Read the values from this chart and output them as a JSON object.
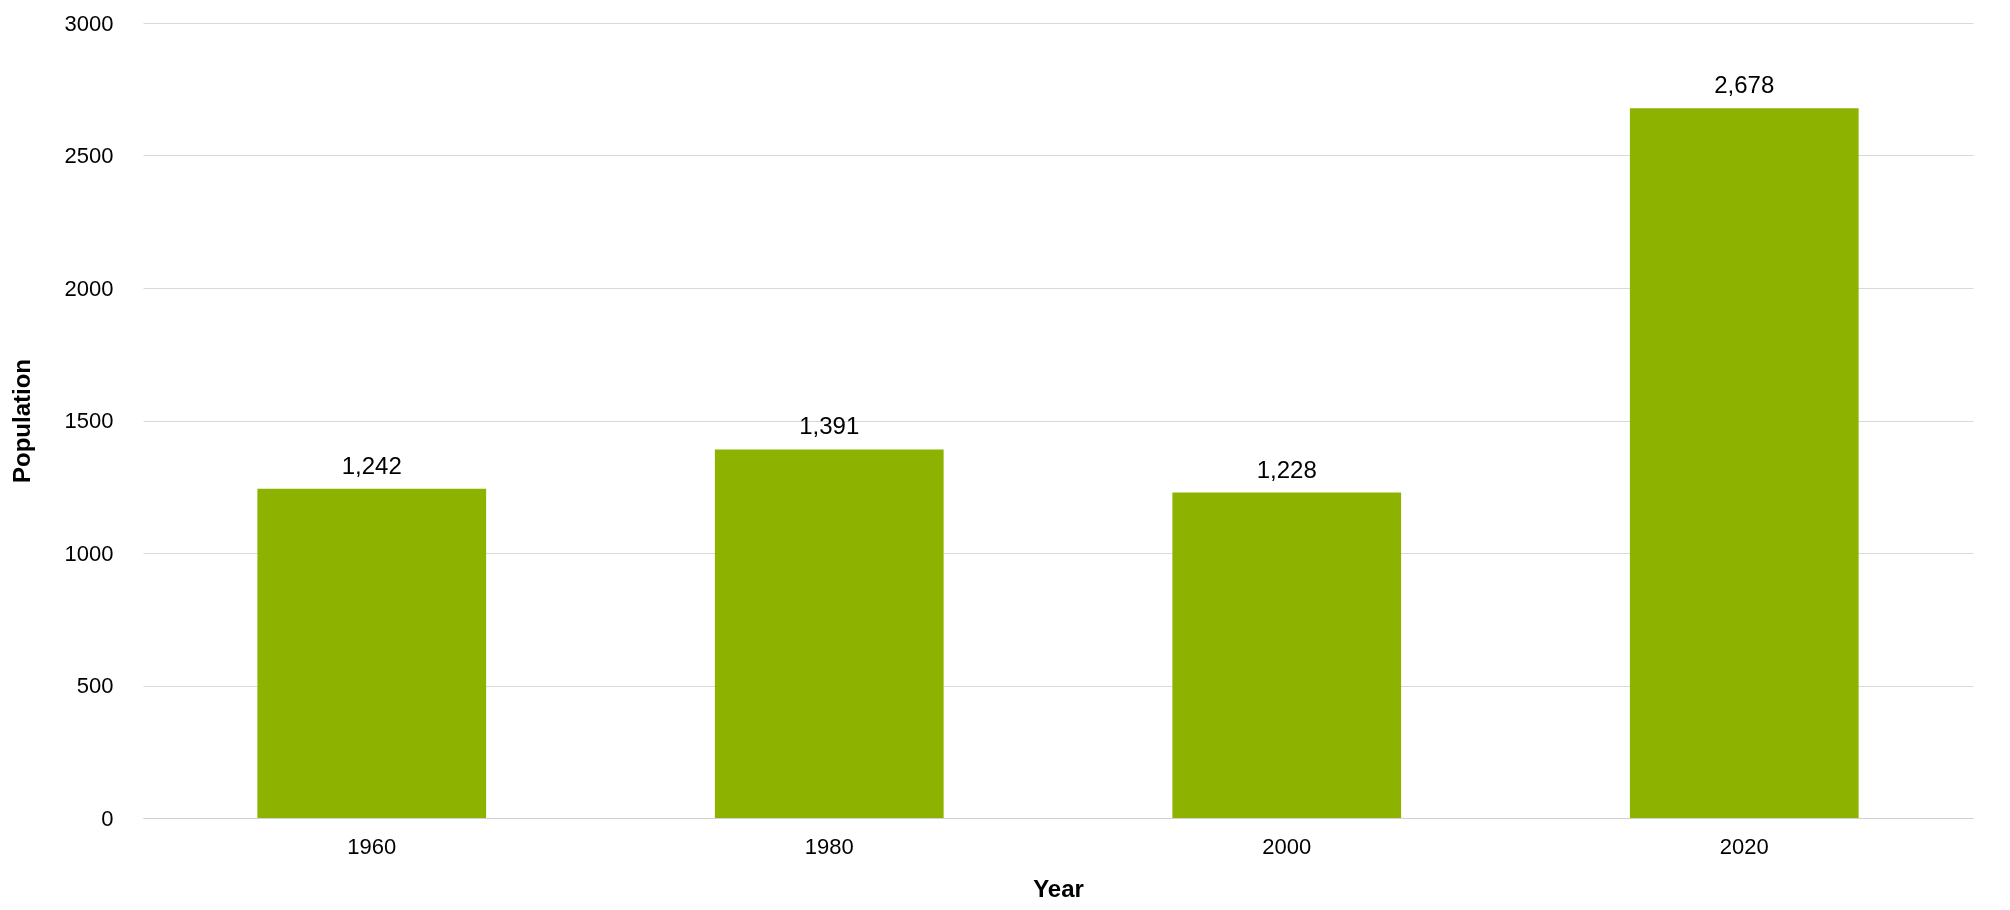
{
  "chart_data": {
    "type": "bar",
    "xlabel": "Year",
    "ylabel": "Population",
    "categories": [
      "1960",
      "1980",
      "2000",
      "2020"
    ],
    "values": [
      1242,
      1391,
      1228,
      2678
    ],
    "value_labels": [
      "1,242",
      "1,391",
      "1,228",
      "2,678"
    ],
    "color": "#8db300",
    "ylim": [
      0,
      3000
    ],
    "yticks": [
      0,
      500,
      1000,
      1500,
      2000,
      2500,
      3000
    ],
    "grid": "y"
  }
}
